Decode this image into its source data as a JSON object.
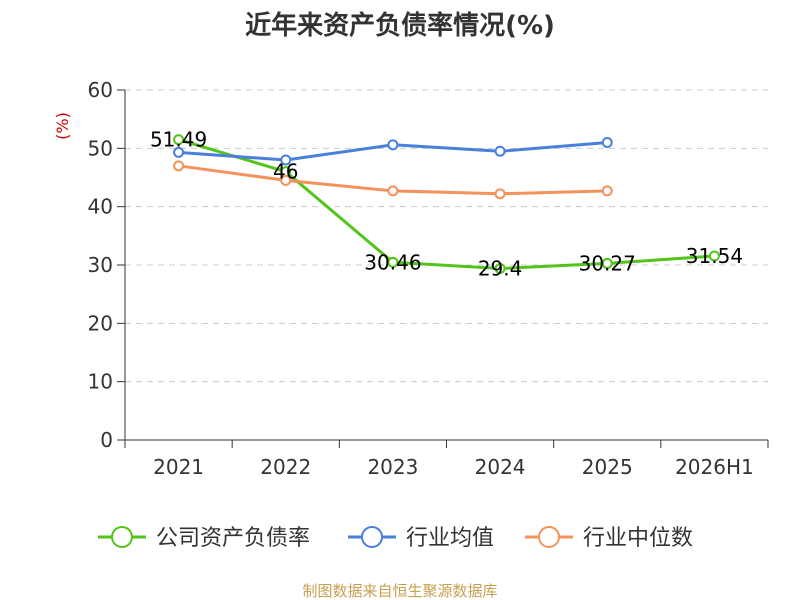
{
  "chart_data": {
    "type": "line",
    "title": "近年来资产负债率情况(%)",
    "ylabel": "(%)",
    "xlabel": "",
    "categories": [
      "2021",
      "2022",
      "2023",
      "2024",
      "2025",
      "2026H1"
    ],
    "ylim": [
      0,
      60
    ],
    "yticks": [
      0,
      10,
      20,
      30,
      40,
      50,
      60
    ],
    "grid": true,
    "legend_position": "bottom",
    "series": [
      {
        "name": "公司资产负债率",
        "color": "#52c41a",
        "values": [
          51.49,
          46,
          30.46,
          29.4,
          30.27,
          31.54
        ],
        "labels": [
          "51.49",
          "46",
          "30.46",
          "29.4",
          "30.27",
          "31.54"
        ]
      },
      {
        "name": "行业均值",
        "color": "#4a7fdc",
        "values": [
          49.3,
          48.0,
          50.6,
          49.5,
          51.0,
          null
        ],
        "labels": null
      },
      {
        "name": "行业中位数",
        "color": "#f5925b",
        "values": [
          47.0,
          44.5,
          42.7,
          42.2,
          42.7,
          null
        ],
        "labels": null
      }
    ],
    "source": "制图数据来自恒生聚源数据库"
  }
}
